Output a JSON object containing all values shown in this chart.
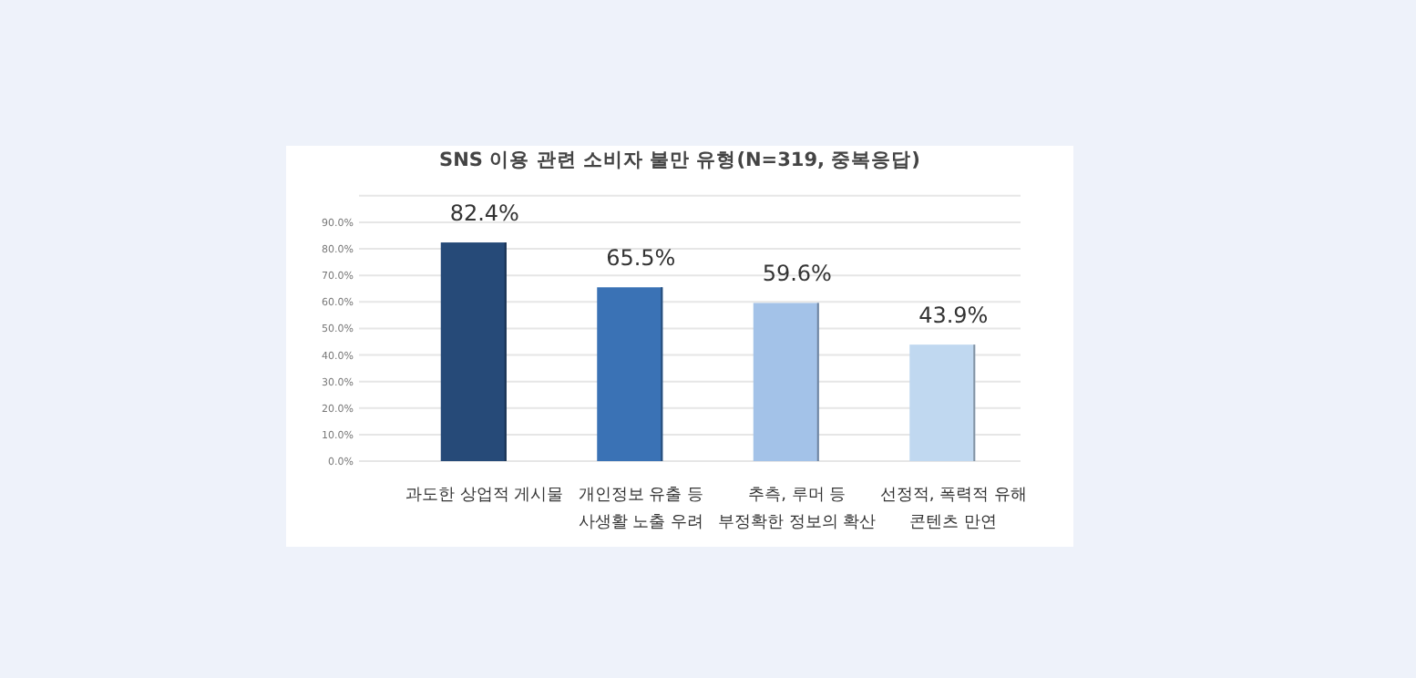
{
  "chart_data": {
    "type": "bar",
    "title": "SNS 이용 관련 소비자 불만 유형(N=319, 중복응답)",
    "categories": [
      "과도한 상업적 게시물",
      "개인정보 유출 등 사생활 노출 우려",
      "추측, 루머 등 부정확한 정보의 확산",
      "선정적, 폭력적 유해 콘텐츠 만연"
    ],
    "values": [
      82.4,
      65.5,
      59.6,
      43.9
    ],
    "colors": [
      "#264a78",
      "#3a72b5",
      "#a3c2e8",
      "#c0d8f0"
    ],
    "value_labels": [
      "82.4%",
      "65.5%",
      "59.6%",
      "43.9%"
    ],
    "ylim": [
      0,
      100
    ],
    "yticks": [
      {
        "value": 0,
        "label": "0.0%"
      },
      {
        "value": 10,
        "label": "10.0%"
      },
      {
        "value": 20,
        "label": "20.0%"
      },
      {
        "value": 30,
        "label": "30.0%"
      },
      {
        "value": 40,
        "label": "40.0%"
      },
      {
        "value": 50,
        "label": "50.0%"
      },
      {
        "value": 60,
        "label": "60.0%"
      },
      {
        "value": 70,
        "label": "70.0%"
      },
      {
        "value": 80,
        "label": "80.0%"
      },
      {
        "value": 90,
        "label": "90.0%"
      },
      {
        "value": 100,
        "label": null
      }
    ],
    "grid": "y"
  }
}
